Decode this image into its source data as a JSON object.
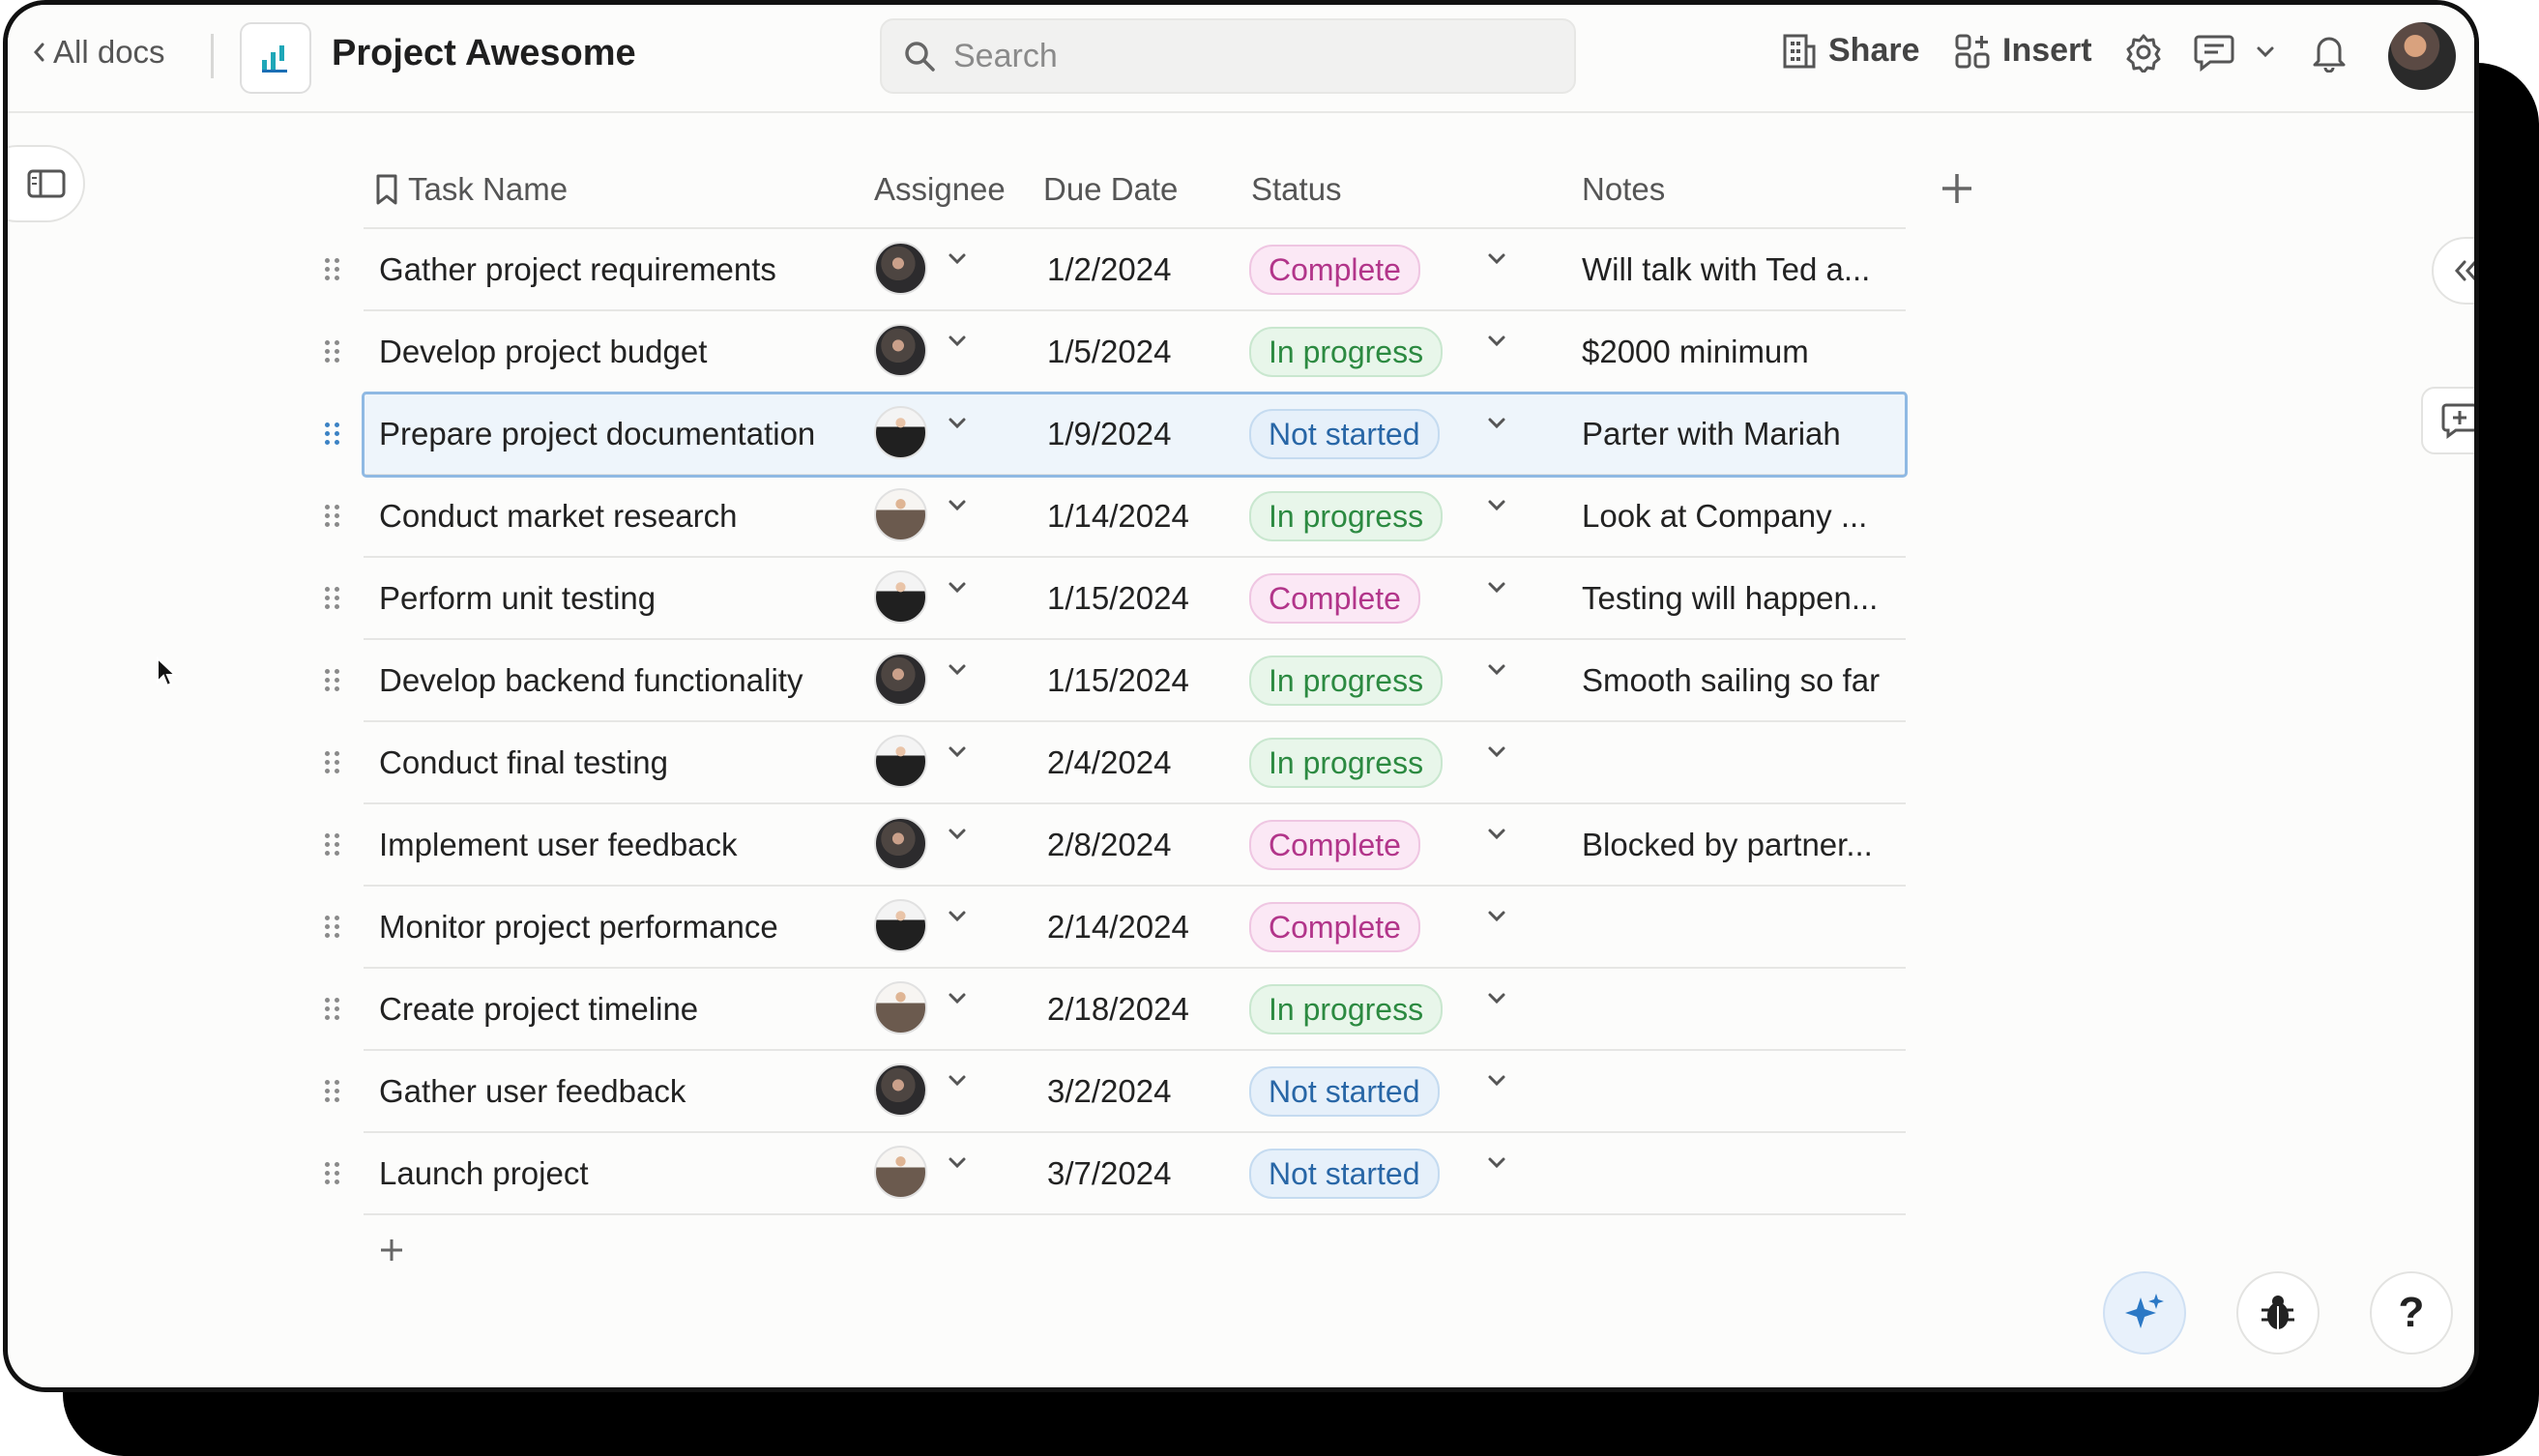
{
  "header": {
    "back_label": "All docs",
    "doc_title": "Project Awesome",
    "search_placeholder": "Search",
    "share_label": "Share",
    "insert_label": "Insert"
  },
  "table": {
    "columns": [
      "Task Name",
      "Assignee",
      "Due Date",
      "Status",
      "Notes"
    ],
    "rows": [
      {
        "task": "Gather project requirements",
        "avatar": "av-dark",
        "date": "1/2/2024",
        "status": "Complete",
        "status_class": "st-complete",
        "notes": "Will talk with Ted a..."
      },
      {
        "task": "Develop project budget",
        "avatar": "av-dark",
        "date": "1/5/2024",
        "status": "In progress",
        "status_class": "st-progress",
        "notes": "$2000 minimum"
      },
      {
        "task": "Prepare project documentation",
        "avatar": "av-suit",
        "date": "1/9/2024",
        "status": "Not started",
        "status_class": "st-notstarted",
        "notes": "Parter with Mariah",
        "selected": true
      },
      {
        "task": "Conduct market research",
        "avatar": "av-light",
        "date": "1/14/2024",
        "status": "In progress",
        "status_class": "st-progress",
        "notes": "Look at Company ..."
      },
      {
        "task": "Perform unit testing",
        "avatar": "av-suit",
        "date": "1/15/2024",
        "status": "Complete",
        "status_class": "st-complete",
        "notes": "Testing will happen..."
      },
      {
        "task": "Develop backend functionality",
        "avatar": "av-dark",
        "date": "1/15/2024",
        "status": "In progress",
        "status_class": "st-progress",
        "notes": "Smooth sailing so far"
      },
      {
        "task": "Conduct final testing",
        "avatar": "av-suit",
        "date": "2/4/2024",
        "status": "In progress",
        "status_class": "st-progress",
        "notes": ""
      },
      {
        "task": "Implement user feedback",
        "avatar": "av-dark",
        "date": "2/8/2024",
        "status": "Complete",
        "status_class": "st-complete",
        "notes": "Blocked by partner..."
      },
      {
        "task": "Monitor project performance",
        "avatar": "av-suit",
        "date": "2/14/2024",
        "status": "Complete",
        "status_class": "st-complete",
        "notes": ""
      },
      {
        "task": "Create project timeline",
        "avatar": "av-light",
        "date": "2/18/2024",
        "status": "In progress",
        "status_class": "st-progress",
        "notes": ""
      },
      {
        "task": "Gather user feedback",
        "avatar": "av-dark",
        "date": "3/2/2024",
        "status": "Not started",
        "status_class": "st-notstarted",
        "notes": ""
      },
      {
        "task": "Launch project",
        "avatar": "av-light",
        "date": "3/7/2024",
        "status": "Not started",
        "status_class": "st-notstarted",
        "notes": ""
      }
    ]
  },
  "colors": {
    "complete": "#b2358a",
    "in_progress": "#2c8a41",
    "not_started": "#2866a6",
    "selection": "#8fb9e3"
  }
}
